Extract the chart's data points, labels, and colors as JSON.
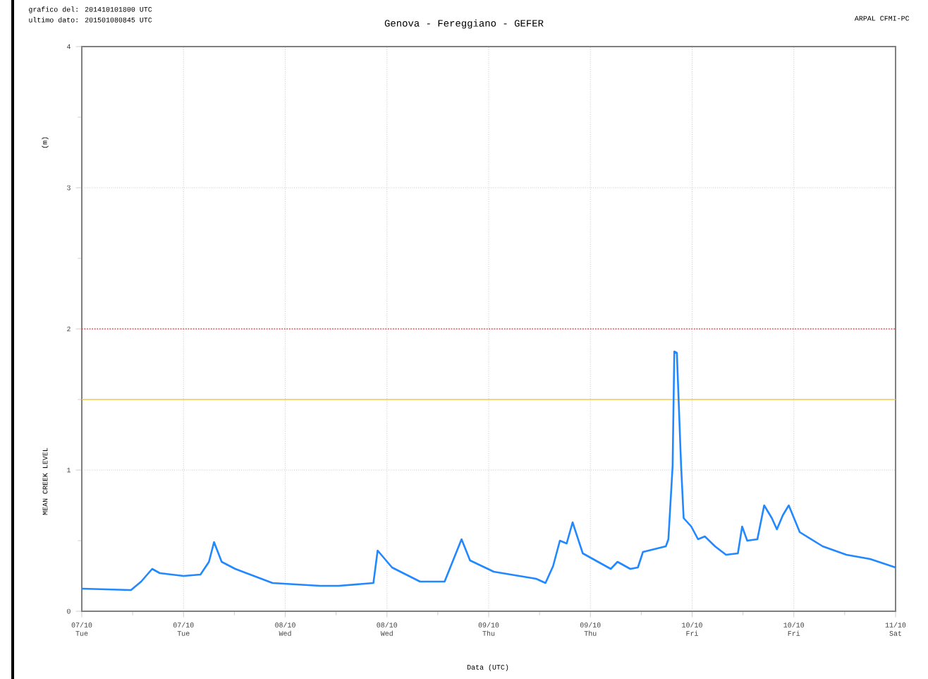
{
  "chart_data": {
    "type": "line",
    "title": "Genova - Fereggiano - GEFER",
    "xlabel": "Data (UTC)",
    "ylabel": "MEAN CREEK LEVEL",
    "annotations": [
      "grafico del: 201410101800 UTC",
      "ultimo dato: 201501080845 UTC",
      "ARPAL CFMI-PC",
      "(m)"
    ],
    "x": [
      "2014-10-07T00:00",
      "2014-10-07T05:48",
      "2014-10-07T07:00",
      "2014-10-07T08:18",
      "2014-10-07T09:12",
      "2014-10-07T12:00",
      "2014-10-07T14:00",
      "2014-10-07T15:00",
      "2014-10-07T15:36",
      "2014-10-07T16:30",
      "2014-10-07T18:06",
      "2014-10-07T22:30",
      "2014-10-08T04:06",
      "2014-10-08T06:18",
      "2014-10-08T10:24",
      "2014-10-08T10:54",
      "2014-10-08T12:36",
      "2014-10-08T15:54",
      "2014-10-08T18:48",
      "2014-10-08T20:48",
      "2014-10-08T21:48",
      "2014-10-09T00:36",
      "2014-10-09T05:36",
      "2014-10-09T06:42",
      "2014-10-09T07:36",
      "2014-10-09T08:24",
      "2014-10-09T09:12",
      "2014-10-09T09:54",
      "2014-10-09T11:06",
      "2014-10-09T14:24",
      "2014-10-09T15:12",
      "2014-10-09T16:42",
      "2014-10-09T17:36",
      "2014-10-09T18:12",
      "2014-10-09T20:54",
      "2014-10-09T21:12",
      "2014-10-09T21:42",
      "2014-10-09T21:54",
      "2014-10-09T22:12",
      "2014-10-09T22:42",
      "2014-10-09T23:00",
      "2014-10-09T23:54",
      "2014-10-10T00:42",
      "2014-10-10T01:30",
      "2014-10-10T02:42",
      "2014-10-10T04:00",
      "2014-10-10T05:24",
      "2014-10-10T05:54",
      "2014-10-10T06:30",
      "2014-10-10T07:42",
      "2014-10-10T08:30",
      "2014-10-10T09:24",
      "2014-10-10T10:00",
      "2014-10-10T10:42",
      "2014-10-10T11:24",
      "2014-10-10T12:42",
      "2014-10-10T15:24",
      "2014-10-10T18:12",
      "2014-10-10T21:00",
      "2014-10-11T00:00"
    ],
    "series": [
      {
        "color": "#2288ff",
        "values": [
          0.16,
          0.15,
          0.21,
          0.3,
          0.27,
          0.25,
          0.26,
          0.35,
          0.49,
          0.35,
          0.3,
          0.2,
          0.18,
          0.18,
          0.2,
          0.43,
          0.31,
          0.21,
          0.21,
          0.51,
          0.36,
          0.28,
          0.23,
          0.2,
          0.32,
          0.5,
          0.48,
          0.63,
          0.41,
          0.3,
          0.35,
          0.3,
          0.31,
          0.42,
          0.46,
          0.51,
          1.03,
          1.84,
          1.83,
          1.03,
          0.66,
          0.6,
          0.51,
          0.53,
          0.46,
          0.4,
          0.41,
          0.6,
          0.5,
          0.51,
          0.75,
          0.66,
          0.58,
          0.68,
          0.75,
          0.56,
          0.46,
          0.4,
          0.37,
          0.31
        ]
      }
    ],
    "xlim": [
      "2014-10-07T00:00",
      "2014-10-11T00:00"
    ],
    "xticks": [
      {
        "value": "2014-10-07T00:00",
        "label": "07/10 Tue"
      },
      {
        "value": "2014-10-07T12:00",
        "label": "07/10 Tue"
      },
      {
        "value": "2014-10-08T00:00",
        "label": "08/10 Wed"
      },
      {
        "value": "2014-10-08T12:00",
        "label": "08/10 Wed"
      },
      {
        "value": "2014-10-09T00:00",
        "label": "09/10 Thu"
      },
      {
        "value": "2014-10-09T12:00",
        "label": "09/10 Thu"
      },
      {
        "value": "2014-10-10T00:00",
        "label": "10/10 Fri"
      },
      {
        "value": "2014-10-10T12:00",
        "label": "10/10 Fri"
      },
      {
        "value": "2014-10-11T00:00",
        "label": "11/10 Sat"
      }
    ],
    "ylim": [
      0,
      4
    ],
    "yticks": [
      0,
      1,
      2,
      3,
      4
    ],
    "ref_lines": [
      {
        "axis": "y",
        "value": 2,
        "color": "#e84040",
        "line_style": "dotted"
      },
      {
        "axis": "y",
        "value": 1.5,
        "color": "#f2c94c",
        "line_style": "solid"
      }
    ],
    "grid": true,
    "marker": "none",
    "line_style": "solid"
  }
}
